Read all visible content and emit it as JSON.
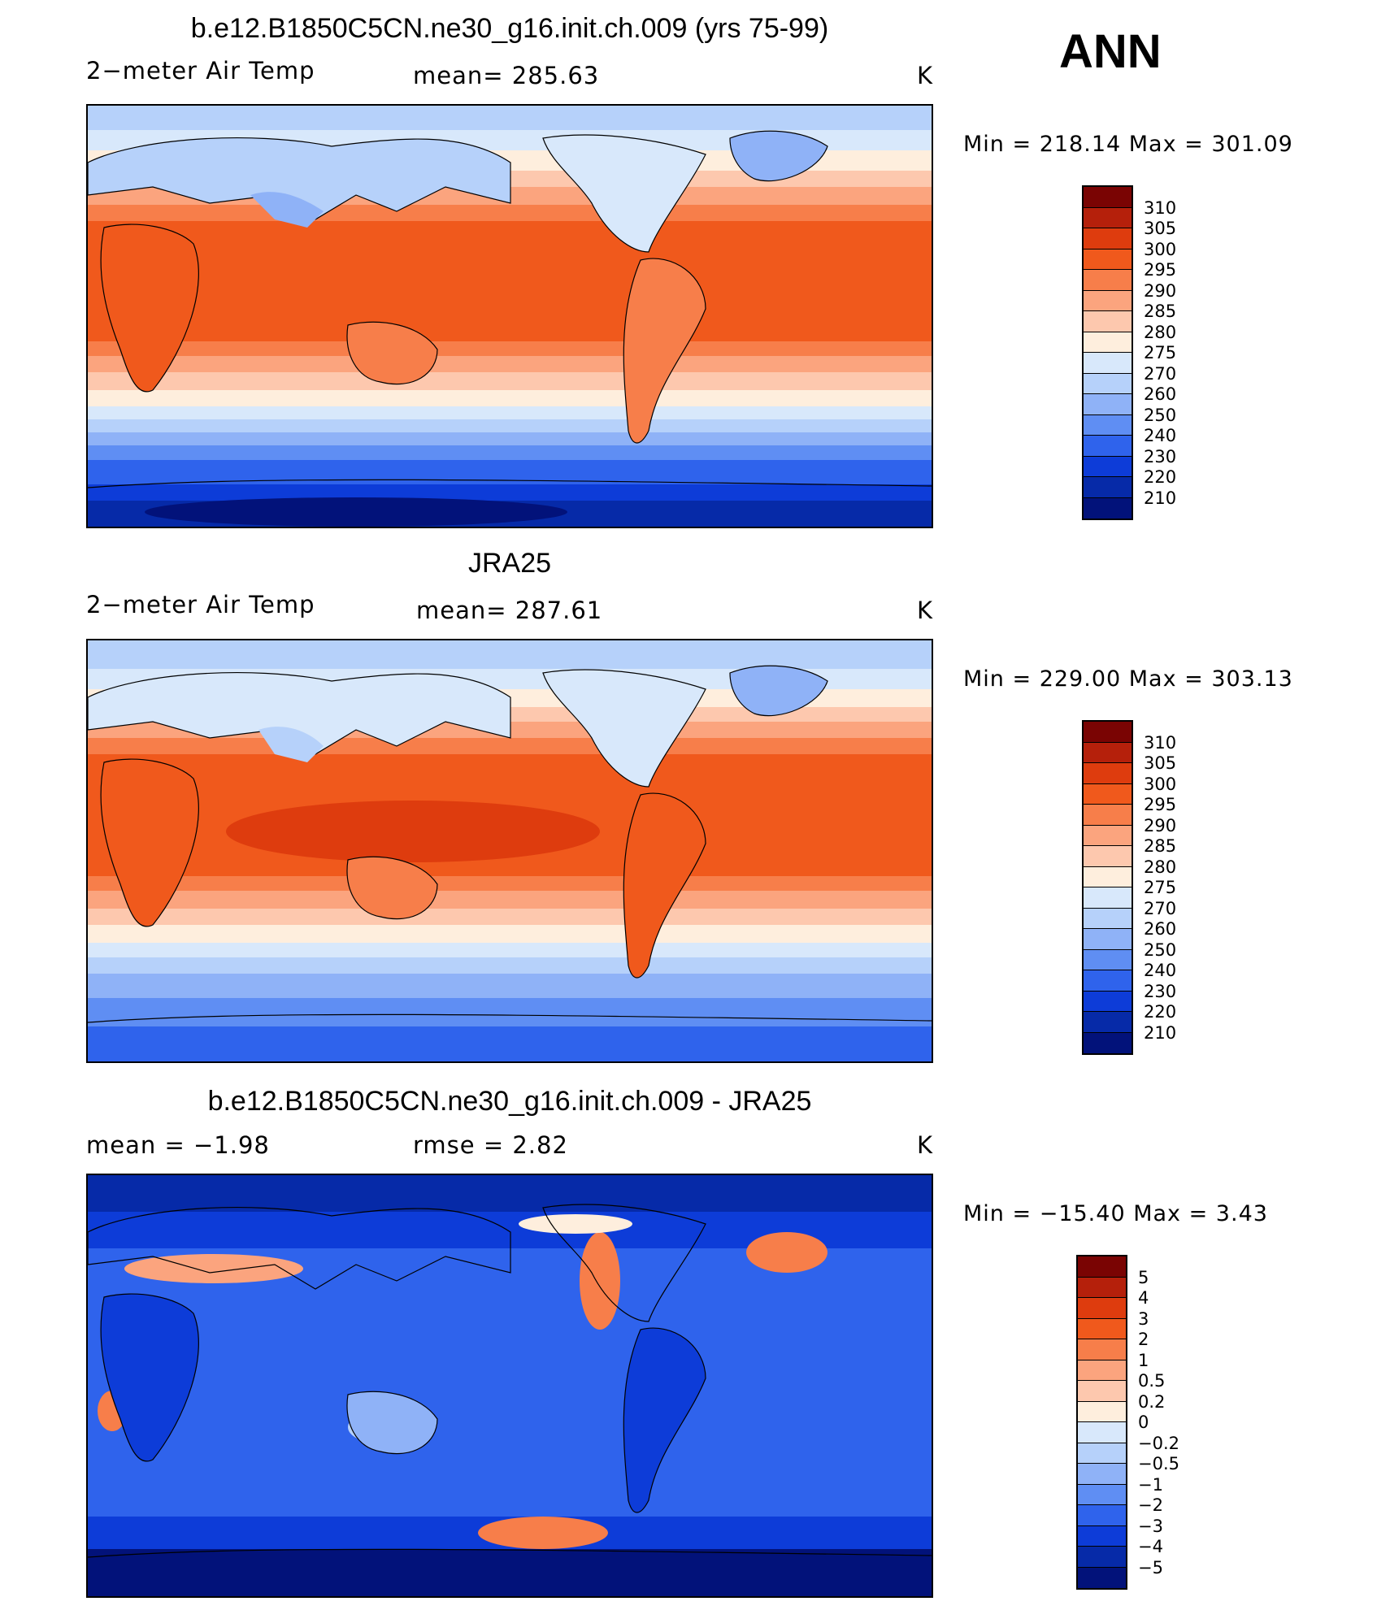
{
  "season": "ANN",
  "panels": [
    {
      "title": "b.e12.B1850C5CN.ne30_g16.init.ch.009 (yrs 75-99)",
      "left_label": "2−meter Air Temp",
      "mid_label": "mean=  285.63",
      "units": "K",
      "minmax": "Min  =  218.14  Max  =  301.09",
      "colorbar": {
        "labels": [
          "310",
          "305",
          "300",
          "295",
          "290",
          "285",
          "280",
          "275",
          "270",
          "260",
          "250",
          "240",
          "230",
          "220",
          "210"
        ],
        "colors": [
          "#7a0403",
          "#b5200b",
          "#de3c0e",
          "#f0591c",
          "#f77e4a",
          "#fba47e",
          "#fdc8ae",
          "#feeedd",
          "#d8e8fb",
          "#b6d1fa",
          "#8fb2f7",
          "#5f8ef3",
          "#2f63ec",
          "#0d3cd8",
          "#062aa8",
          "#02127a"
        ]
      },
      "chart_data": {
        "type": "heatmap",
        "title": "b.e12.B1850C5CN.ne30_g16.init.ch.009 (yrs 75-99)",
        "variable": "2−meter Air Temp",
        "mean": 285.63,
        "min": 218.14,
        "max": 301.09,
        "units": "K",
        "contour_levels": [
          210,
          220,
          230,
          240,
          250,
          260,
          270,
          275,
          280,
          285,
          290,
          295,
          300,
          305,
          310
        ]
      }
    },
    {
      "title": "JRA25",
      "left_label": "2−meter Air Temp",
      "mid_label": "mean=  287.61",
      "units": "K",
      "minmax": "Min  =  229.00  Max  =  303.13",
      "colorbar": {
        "labels": [
          "310",
          "305",
          "300",
          "295",
          "290",
          "285",
          "280",
          "275",
          "270",
          "260",
          "250",
          "240",
          "230",
          "220",
          "210"
        ],
        "colors": [
          "#7a0403",
          "#b5200b",
          "#de3c0e",
          "#f0591c",
          "#f77e4a",
          "#fba47e",
          "#fdc8ae",
          "#feeedd",
          "#d8e8fb",
          "#b6d1fa",
          "#8fb2f7",
          "#5f8ef3",
          "#2f63ec",
          "#0d3cd8",
          "#062aa8",
          "#02127a"
        ]
      },
      "chart_data": {
        "type": "heatmap",
        "title": "JRA25",
        "variable": "2−meter Air Temp",
        "mean": 287.61,
        "min": 229.0,
        "max": 303.13,
        "units": "K",
        "contour_levels": [
          210,
          220,
          230,
          240,
          250,
          260,
          270,
          275,
          280,
          285,
          290,
          295,
          300,
          305,
          310
        ]
      }
    },
    {
      "title": "b.e12.B1850C5CN.ne30_g16.init.ch.009 - JRA25",
      "left_label": "mean  =    −1.98",
      "mid_label": "rmse  =     2.82",
      "units": "K",
      "minmax": "Min  =  −15.40  Max  =     3.43",
      "colorbar": {
        "labels": [
          "5",
          "4",
          "3",
          "2",
          "1",
          "0.5",
          "0.2",
          "0",
          "−0.2",
          "−0.5",
          "−1",
          "−2",
          "−3",
          "−4",
          "−5"
        ],
        "colors": [
          "#7a0403",
          "#b5200b",
          "#de3c0e",
          "#f0591c",
          "#f77e4a",
          "#fba47e",
          "#fdc8ae",
          "#feeedd",
          "#d8e8fb",
          "#b6d1fa",
          "#8fb2f7",
          "#5f8ef3",
          "#2f63ec",
          "#0d3cd8",
          "#062aa8",
          "#02127a"
        ]
      },
      "chart_data": {
        "type": "heatmap",
        "title": "b.e12.B1850C5CN.ne30_g16.init.ch.009 - JRA25",
        "mean": -1.98,
        "rmse": 2.82,
        "min": -15.4,
        "max": 3.43,
        "units": "K",
        "contour_levels": [
          -5,
          -4,
          -3,
          -2,
          -1,
          -0.5,
          -0.2,
          0,
          0.2,
          0.5,
          1,
          2,
          3,
          4,
          5
        ]
      }
    }
  ]
}
